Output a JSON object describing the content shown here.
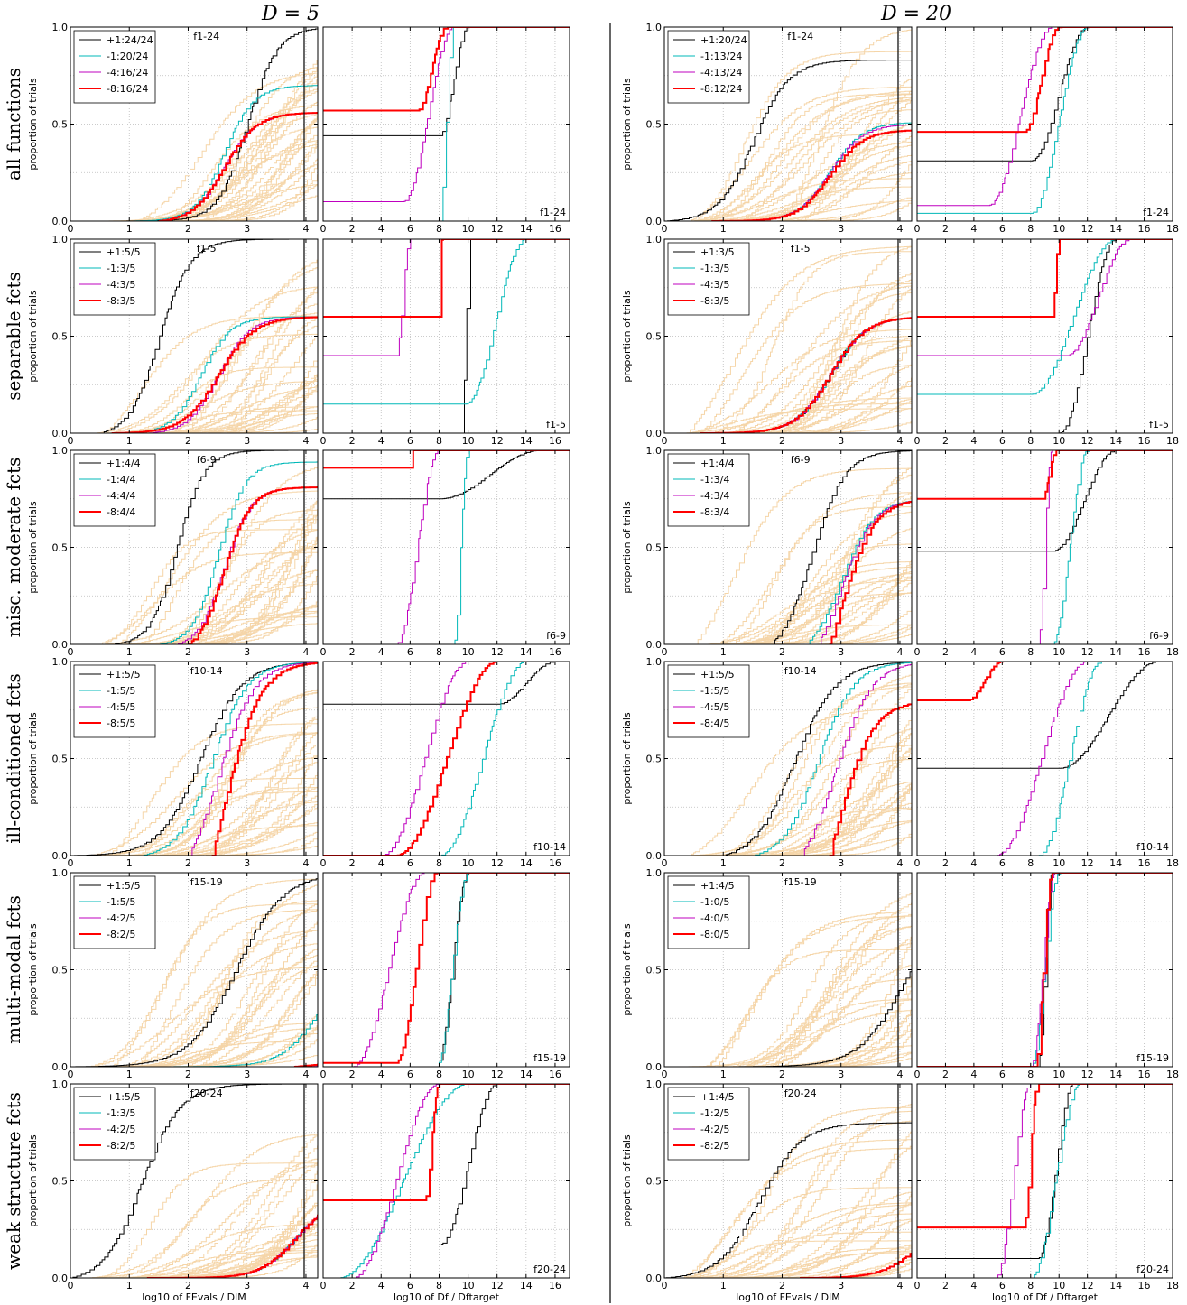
{
  "chart_data": {
    "type": "line",
    "dimension_titles": [
      "D = 5",
      "D = 20"
    ],
    "row_labels": [
      "all functions",
      "separable fcts",
      "misc. moderate fcts",
      "ill-conditioned fcts",
      "multi-modal fcts",
      "weak structure fcts"
    ],
    "ylabel": "proportion of trials",
    "xlabel_left": "log10 of FEvals / DIM",
    "xlabel_right": "log10 of Df / Dftarget",
    "ylim": [
      0,
      1
    ],
    "yticks": [
      "0.0",
      "0.5",
      "1.0"
    ],
    "xticks_left": [
      "0",
      "1",
      "2",
      "3",
      "4"
    ],
    "xticks_right_d5": [
      "0",
      "2",
      "4",
      "6",
      "8",
      "10",
      "12",
      "14",
      "16"
    ],
    "xticks_right_d20": [
      "0",
      "2",
      "4",
      "6",
      "8",
      "10",
      "12",
      "14",
      "16",
      "18"
    ],
    "grid": true,
    "legend_position": "top-left",
    "series_colors": [
      "#000000",
      "#00b8b8",
      "#bf00bf",
      "#ff0000"
    ],
    "background_curve_color": "#f5d5a8",
    "panels": [
      {
        "group": "f1-24",
        "d5": {
          "legend": [
            "+1:24/24",
            "-1:20/24",
            "-4:16/24",
            "-8:16/24"
          ]
        },
        "d20": {
          "legend": [
            "+1:20/24",
            "-1:13/24",
            "-4:13/24",
            "-8:12/24"
          ]
        }
      },
      {
        "group": "f1-5",
        "d5": {
          "legend": [
            "+1:5/5",
            "-1:3/5",
            "-4:3/5",
            "-8:3/5"
          ]
        },
        "d20": {
          "legend": [
            "+1:3/5",
            "-1:3/5",
            "-4:3/5",
            "-8:3/5"
          ]
        }
      },
      {
        "group": "f6-9",
        "d5": {
          "legend": [
            "+1:4/4",
            "-1:4/4",
            "-4:4/4",
            "-8:4/4"
          ]
        },
        "d20": {
          "legend": [
            "+1:4/4",
            "-1:3/4",
            "-4:3/4",
            "-8:3/4"
          ]
        }
      },
      {
        "group": "f10-14",
        "d5": {
          "legend": [
            "+1:5/5",
            "-1:5/5",
            "-4:5/5",
            "-8:5/5"
          ]
        },
        "d20": {
          "legend": [
            "+1:5/5",
            "-1:5/5",
            "-4:5/5",
            "-8:4/5"
          ]
        }
      },
      {
        "group": "f15-19",
        "d5": {
          "legend": [
            "+1:5/5",
            "-1:5/5",
            "-4:2/5",
            "-8:2/5"
          ]
        },
        "d20": {
          "legend": [
            "+1:4/5",
            "-1:0/5",
            "-4:0/5",
            "-8:0/5"
          ]
        }
      },
      {
        "group": "f20-24",
        "d5": {
          "legend": [
            "+1:5/5",
            "-1:3/5",
            "-4:2/5",
            "-8:2/5"
          ]
        },
        "d20": {
          "legend": [
            "+1:4/5",
            "-1:2/5",
            "-4:2/5",
            "-8:2/5"
          ]
        }
      }
    ]
  }
}
